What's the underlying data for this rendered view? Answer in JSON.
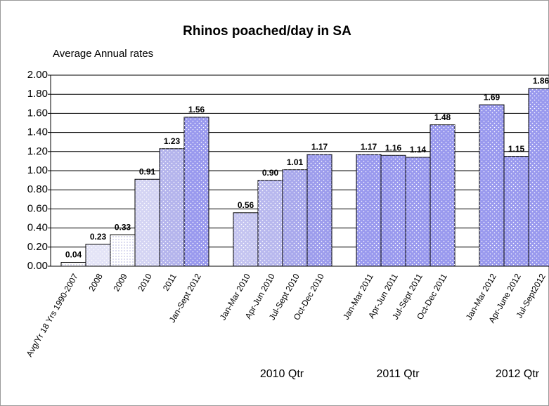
{
  "chart_data": {
    "type": "bar",
    "title": "Rhinos poached/day in SA",
    "subtitle": "Average Annual rates",
    "categories": [
      "Avg/Yr 18 Yrs 1990-2007",
      "2008",
      "2009",
      "2010",
      "2011",
      "Jan-Sept 2012",
      null,
      "Jan-Mar 2010",
      "Apr-Jun 2010",
      "Jul-Sept 2010",
      "Oct-Dec 2010",
      null,
      "Jan-Mar 2011",
      "Apr-Jun 2011",
      "Jul-Sept 2011",
      "Oct-Dec 2011",
      null,
      "Jan-Mar 2012",
      "Apr-June 2012",
      "Jul-Sept2012"
    ],
    "values": [
      0.04,
      0.23,
      0.33,
      0.91,
      1.23,
      1.56,
      null,
      0.56,
      0.9,
      1.01,
      1.17,
      null,
      1.17,
      1.16,
      1.14,
      1.48,
      null,
      1.69,
      1.15,
      1.86
    ],
    "value_labels": [
      "0.04",
      "0.23",
      "0.33",
      "0.91",
      "1.23",
      "1.56",
      null,
      "0.56",
      "0.90",
      "1.01",
      "1.17",
      null,
      "1.17",
      "1.16",
      "1.14",
      "1.48",
      null,
      "1.69",
      "1.15",
      "1.86"
    ],
    "colors": [
      "#ffffff",
      "#e4e4f7",
      "#ffffff",
      "#d4d4f3",
      "#b4b4ec",
      "#9999ee",
      null,
      "#c4c4f0",
      "#b8b8ee",
      "#a8a8ec",
      "#9c9cec",
      null,
      "#9999ee",
      "#9999ee",
      "#9999ee",
      "#9999ee",
      null,
      "#9999ee",
      "#9999ee",
      "#9999ee"
    ],
    "ylim": [
      0,
      2
    ],
    "yticks": [
      {
        "value": 0,
        "label": "0.00"
      },
      {
        "value": 0.2,
        "label": "0.20"
      },
      {
        "value": 0.4,
        "label": "0.40"
      },
      {
        "value": 0.6,
        "label": "0.60"
      },
      {
        "value": 0.8,
        "label": "0.80"
      },
      {
        "value": 1,
        "label": "1.00"
      },
      {
        "value": 1.2,
        "label": "1.20"
      },
      {
        "value": 1.4,
        "label": "1.40"
      },
      {
        "value": 1.6,
        "label": "1.60"
      },
      {
        "value": 1.8,
        "label": "1.80"
      },
      {
        "value": 2,
        "label": "2.00"
      }
    ],
    "grid": true,
    "annotations": [
      "2010 Qtr",
      "2011 Qtr",
      "2012 Qtr"
    ]
  }
}
